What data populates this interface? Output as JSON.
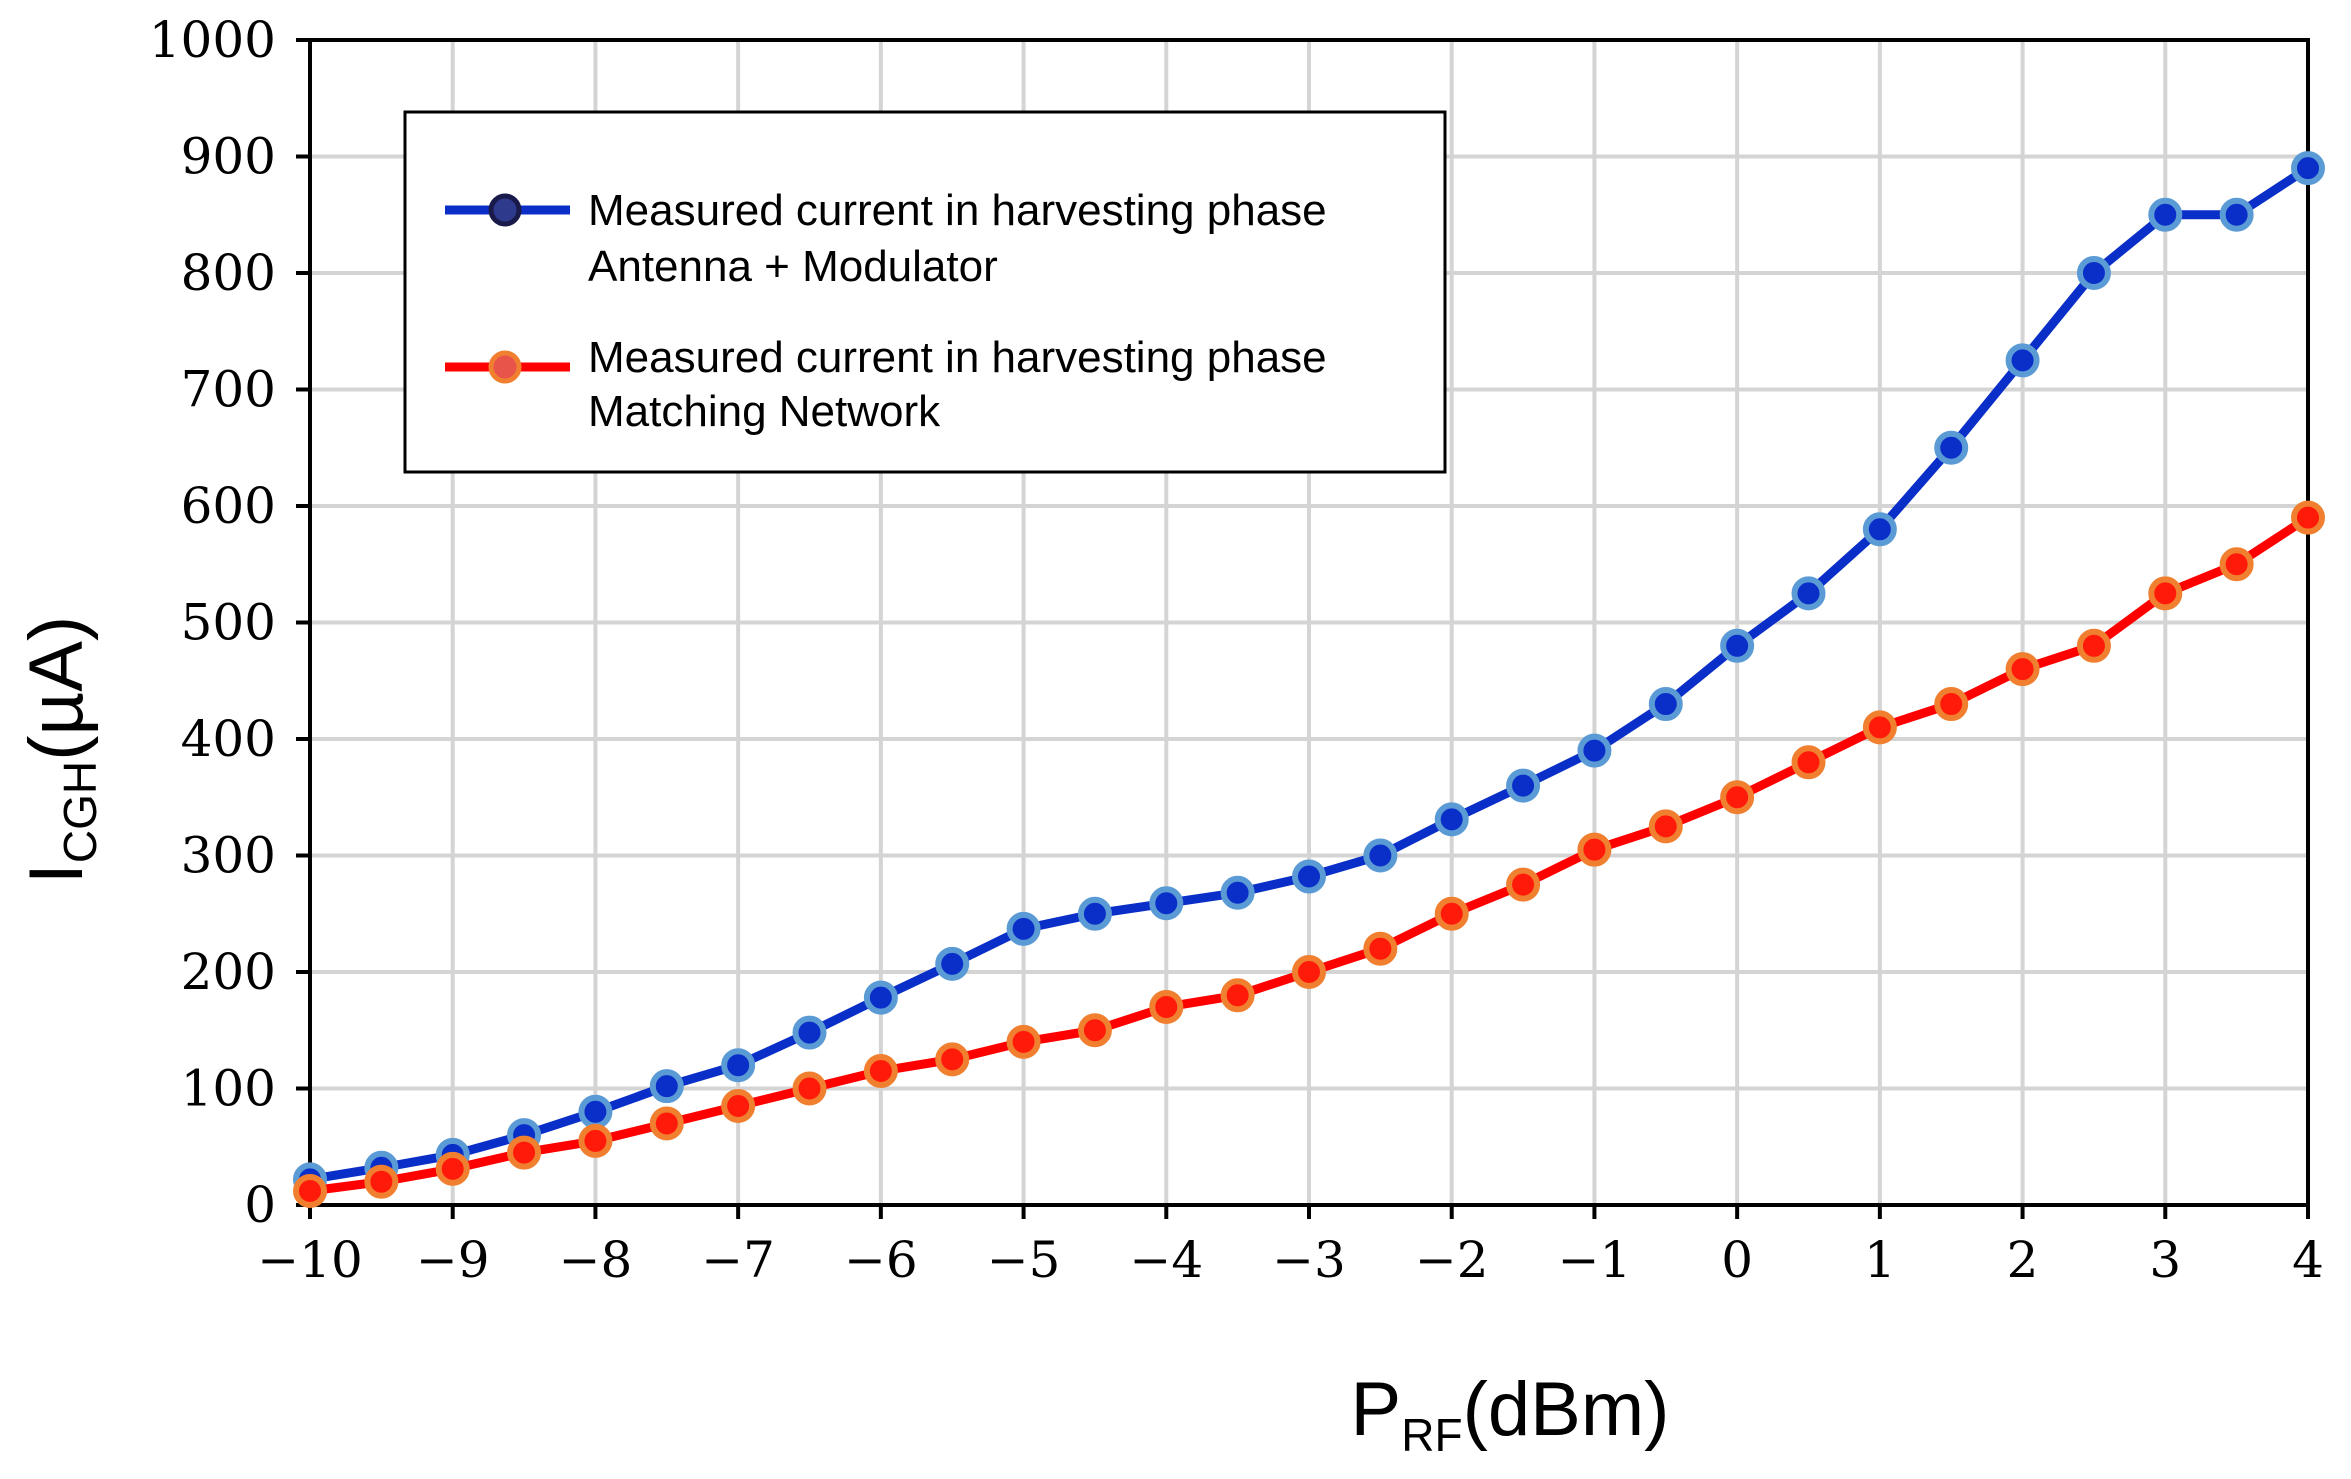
{
  "chart_data": {
    "type": "line",
    "title": "",
    "xlabel": {
      "main": "P",
      "sub": "RF",
      "unit": "(dBm)"
    },
    "ylabel": {
      "main": "I",
      "sub": "CGH",
      "unit": "(µA)"
    },
    "xlim": [
      -10,
      4
    ],
    "ylim": [
      0,
      1000
    ],
    "xticks": [
      -10,
      -9,
      -8,
      -7,
      -6,
      -5,
      -4,
      -3,
      -2,
      -1,
      0,
      1,
      2,
      3,
      4
    ],
    "xtick_labels": [
      "−10",
      "−9",
      "−8",
      "−7",
      "−6",
      "−5",
      "−4",
      "−3",
      "−2",
      "−1",
      "0",
      "1",
      "2",
      "3",
      "4"
    ],
    "yticks": [
      0,
      100,
      200,
      300,
      400,
      500,
      600,
      700,
      800,
      900,
      1000
    ],
    "ytick_labels": [
      "0",
      "100",
      "200",
      "300",
      "400",
      "500",
      "600",
      "700",
      "800",
      "900",
      "1000"
    ],
    "grid": true,
    "legend_position": "top-left",
    "x": [
      -10,
      -9.5,
      -9,
      -8.5,
      -8,
      -7.5,
      -7,
      -6.5,
      -6,
      -5.5,
      -5,
      -4.5,
      -4,
      -3.5,
      -3,
      -2.5,
      -2,
      -1.5,
      -1,
      -0.5,
      0,
      0.5,
      1,
      1.5,
      2,
      2.5,
      3,
      3.5,
      4
    ],
    "series": [
      {
        "name_line1": "Measured current in harvesting phase",
        "name_line2": "Antenna + Modulator",
        "line_color": "#0a2fc8",
        "marker_fill": "#0a2fc8",
        "marker_edge": "#5b9bd5",
        "legend_marker_fill": "#2e3a8c",
        "legend_marker_edge": "#1a1a4a",
        "values": [
          22,
          32,
          43,
          60,
          80,
          102,
          120,
          148,
          178,
          207,
          237,
          250,
          259,
          268,
          282,
          300,
          331,
          360,
          390,
          430,
          480,
          525,
          580,
          650,
          725,
          800,
          850,
          850,
          890
        ]
      },
      {
        "name_line1": "Measured current in harvesting phase",
        "name_line2": "Matching Network",
        "line_color": "#ff0000",
        "marker_fill": "#ff1a0a",
        "marker_edge": "#f08030",
        "legend_marker_fill": "#e8544a",
        "legend_marker_edge": "#f08030",
        "values": [
          12,
          20,
          31,
          45,
          55,
          70,
          85,
          100,
          115,
          125,
          140,
          150,
          170,
          180,
          200,
          220,
          250,
          275,
          305,
          325,
          350,
          380,
          410,
          430,
          460,
          480,
          525,
          550,
          590
        ]
      }
    ],
    "colors": {
      "grid": "#d4d4d4",
      "axis": "#000000",
      "legend_border": "#000000"
    }
  }
}
